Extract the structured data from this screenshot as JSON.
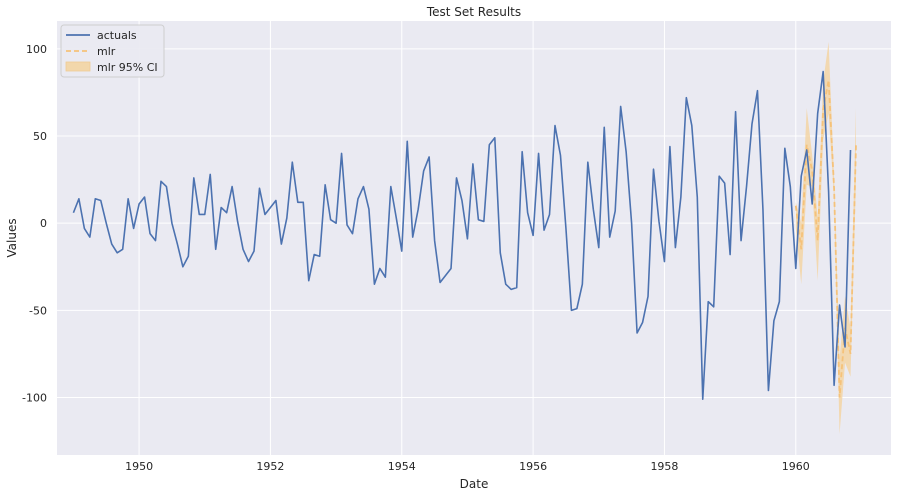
{
  "chart_data": {
    "type": "line",
    "title": "Test Set Results",
    "xlabel": "Date",
    "ylabel": "Values",
    "xlim": [
      1948.75,
      1961.45
    ],
    "ylim": [
      -133,
      116
    ],
    "xticks": [
      1950,
      1952,
      1954,
      1956,
      1958,
      1960
    ],
    "yticks": [
      -100,
      -50,
      0,
      50,
      100
    ],
    "grid": true,
    "legend": {
      "placement": "top-left",
      "entries": [
        {
          "label": "actuals",
          "style": "solid",
          "color": "#4c72b0"
        },
        {
          "label": "mlr",
          "style": "dashed",
          "color": "#f5c27a"
        },
        {
          "label": "mlr 95% CI",
          "style": "band",
          "color": "#f3d5a4"
        }
      ]
    },
    "colors": {
      "background": "#eaeaf2",
      "grid": "#ffffff",
      "actuals": "#4c72b0",
      "mlr": "#f5c27a",
      "ci_fill": "#f3d5a4"
    },
    "series": [
      {
        "name": "actuals",
        "start": 1949.0,
        "step": 0.0833333,
        "values": [
          6,
          14,
          -3,
          -8,
          14,
          13,
          0,
          -12,
          -17,
          -15,
          14,
          -3,
          11,
          15,
          -6,
          -10,
          24,
          21,
          0,
          -12,
          -25,
          -19,
          26,
          5,
          5,
          28,
          -15,
          9,
          6,
          21,
          1,
          -15,
          -22,
          -16,
          20,
          5,
          9,
          13,
          -12,
          3,
          35,
          12,
          12,
          -33,
          -18,
          -19,
          22,
          2,
          0,
          40,
          -1,
          -6,
          14,
          21,
          8,
          -35,
          -26,
          -31,
          21,
          3,
          -16,
          47,
          -8,
          8,
          30,
          38,
          -10,
          -34,
          -30,
          -26,
          26,
          13,
          -9,
          34,
          2,
          1,
          45,
          49,
          -17,
          -35,
          -38,
          -37,
          41,
          6,
          -7,
          40,
          -4,
          5,
          56,
          39,
          -3,
          -50,
          -49,
          -35,
          35,
          8,
          -14,
          55,
          -8,
          7,
          67,
          41,
          0,
          -63,
          -57,
          -42,
          31,
          1,
          -22,
          44,
          -14,
          15,
          72,
          56,
          15,
          -101,
          -45,
          -48,
          27,
          23,
          -18,
          64,
          -10,
          21,
          57,
          76,
          8,
          -96,
          -56,
          -45,
          43,
          21,
          -26,
          27,
          42,
          11,
          63,
          87,
          18,
          -93,
          -47,
          -71,
          42
        ]
      },
      {
        "name": "mlr",
        "start": 1960.0,
        "step": 0.0833333,
        "values": [
          10,
          -15,
          45,
          30,
          -10,
          65,
          82,
          20,
          -100,
          -60,
          -75,
          45
        ]
      },
      {
        "name": "mlr 95% CI",
        "start": 1960.0,
        "step": 0.0833333,
        "upper": [
          12,
          0,
          66,
          39,
          3,
          81,
          104,
          26,
          -78,
          -42,
          -60,
          66
        ],
        "lower": [
          -3,
          -35,
          22,
          21,
          -33,
          48,
          63,
          14,
          -121,
          -80,
          -88,
          25
        ]
      }
    ]
  }
}
